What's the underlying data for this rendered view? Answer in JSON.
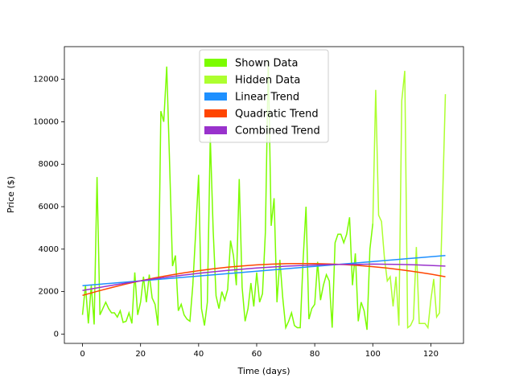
{
  "chart_data": {
    "type": "line",
    "x_label": "Time (days)",
    "y_label": "Price ($)",
    "xlim": [
      -6.25,
      131.25
    ],
    "ylim": [
      -440,
      13540
    ],
    "xticks": [
      0,
      20,
      40,
      60,
      80,
      100,
      120
    ],
    "yticks": [
      0,
      2000,
      4000,
      6000,
      8000,
      10000,
      12000
    ],
    "legend_loc": "upper center",
    "series": [
      {
        "name": "Shown Data",
        "color": "#7CFC00",
        "x": [
          0,
          1,
          2,
          3,
          4,
          5,
          6,
          7,
          8,
          9,
          10,
          11,
          12,
          13,
          14,
          15,
          16,
          17,
          18,
          19,
          20,
          21,
          22,
          23,
          24,
          25,
          26,
          27,
          28,
          29,
          30,
          31,
          32,
          33,
          34,
          35,
          36,
          37,
          38,
          39,
          40,
          41,
          42,
          43,
          44,
          45,
          46,
          47,
          48,
          49,
          50,
          51,
          52,
          53,
          54,
          55,
          56,
          57,
          58,
          59,
          60,
          61,
          62,
          63,
          64,
          65,
          66,
          67,
          68,
          69,
          70,
          71,
          72,
          73,
          74,
          75,
          76,
          77,
          78,
          79,
          80,
          81,
          82,
          83,
          84,
          85,
          86,
          87,
          88,
          89,
          90,
          91,
          92,
          93,
          94,
          95,
          96,
          97,
          98,
          99,
          100
        ],
        "values": [
          900,
          2300,
          500,
          2300,
          450,
          7400,
          900,
          1200,
          1500,
          1200,
          1000,
          1000,
          800,
          1100,
          550,
          600,
          1000,
          500,
          2900,
          900,
          1500,
          2700,
          1500,
          2800,
          1700,
          1400,
          400,
          10500,
          10000,
          12600,
          8000,
          3200,
          3700,
          1100,
          1400,
          900,
          700,
          600,
          2300,
          4800,
          7500,
          1200,
          400,
          1500,
          9300,
          4900,
          1800,
          1200,
          2000,
          1600,
          2100,
          4400,
          3700,
          2300,
          7300,
          2200,
          600,
          1200,
          2400,
          1300,
          2900,
          1500,
          1900,
          4800,
          12900,
          5100,
          6400,
          1500,
          3500,
          1700,
          300,
          600,
          1000,
          400,
          300,
          300,
          3500,
          6000,
          700,
          1200,
          1400,
          3400,
          1600,
          2300,
          2800,
          2500,
          300,
          4300,
          4700,
          4700,
          4300,
          4700,
          5500,
          2300,
          3800,
          600,
          1500,
          1100,
          200,
          4000,
          5200
        ]
      },
      {
        "name": "Hidden Data",
        "color": "#ADFF2F",
        "x": [
          100,
          101,
          102,
          103,
          104,
          105,
          106,
          107,
          108,
          109,
          110,
          111,
          112,
          113,
          114,
          115,
          116,
          117,
          118,
          119,
          120,
          121,
          122,
          123,
          124,
          125
        ],
        "values": [
          5200,
          11500,
          5600,
          5300,
          3600,
          2500,
          2700,
          1300,
          2700,
          400,
          11000,
          12400,
          300,
          400,
          700,
          4100,
          500,
          500,
          500,
          300,
          1600,
          2600,
          800,
          1000,
          6000,
          11300
        ]
      },
      {
        "name": "Linear Trend",
        "color": "#1E90FF",
        "x": [
          0,
          5,
          10,
          15,
          20,
          25,
          30,
          35,
          40,
          45,
          50,
          55,
          60,
          65,
          70,
          75,
          80,
          85,
          90,
          95,
          100,
          105,
          110,
          115,
          120,
          125
        ],
        "values": [
          2280,
          2337,
          2394,
          2450,
          2507,
          2564,
          2621,
          2678,
          2734,
          2791,
          2848,
          2905,
          2962,
          3018,
          3075,
          3132,
          3189,
          3246,
          3302,
          3359,
          3416,
          3473,
          3530,
          3586,
          3643,
          3700
        ]
      },
      {
        "name": "Quadratic Trend",
        "color": "#FF4500",
        "x": [
          0,
          5,
          10,
          15,
          20,
          25,
          30,
          35,
          40,
          45,
          50,
          55,
          60,
          65,
          70,
          75,
          80,
          85,
          90,
          95,
          100,
          105,
          110,
          115,
          120,
          125
        ],
        "values": [
          1820,
          2011,
          2189,
          2355,
          2507,
          2646,
          2772,
          2885,
          2986,
          3073,
          3147,
          3208,
          3256,
          3292,
          3314,
          3323,
          3319,
          3302,
          3273,
          3230,
          3174,
          3105,
          3023,
          2929,
          2821,
          2700
        ]
      },
      {
        "name": "Combined Trend",
        "color": "#9932CC",
        "x": [
          0,
          5,
          10,
          15,
          20,
          25,
          30,
          35,
          40,
          45,
          50,
          55,
          60,
          65,
          70,
          75,
          80,
          85,
          90,
          95,
          100,
          105,
          110,
          115,
          120,
          125
        ],
        "values": [
          2050,
          2174,
          2292,
          2403,
          2507,
          2605,
          2697,
          2782,
          2860,
          2932,
          2998,
          3057,
          3111,
          3155,
          3196,
          3228,
          3254,
          3274,
          3282,
          3286,
          3295,
          3289,
          3277,
          3258,
          3232,
          3200
        ]
      }
    ]
  }
}
